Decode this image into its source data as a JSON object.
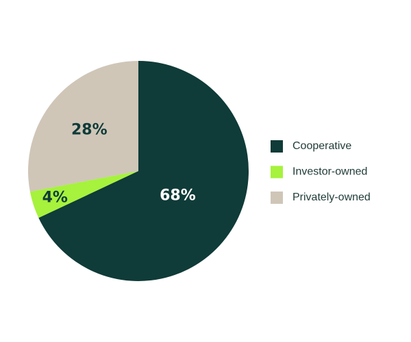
{
  "chart_data": {
    "type": "pie",
    "categories": [
      "Cooperative",
      "Investor-owned",
      "Privately-owned"
    ],
    "values": [
      68,
      4,
      28
    ],
    "value_labels": [
      "68%",
      "4%",
      "28%"
    ],
    "colors": [
      "#0f3b38",
      "#a6f23c",
      "#cfc6b8"
    ],
    "legend": "right"
  }
}
